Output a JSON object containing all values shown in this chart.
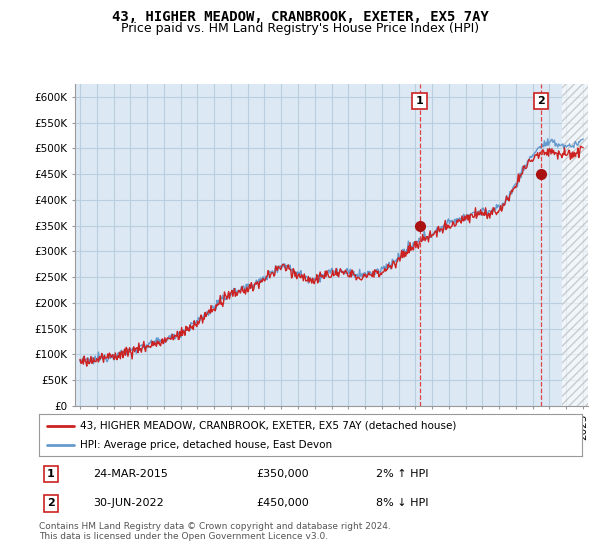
{
  "title": "43, HIGHER MEADOW, CRANBROOK, EXETER, EX5 7AY",
  "subtitle": "Price paid vs. HM Land Registry's House Price Index (HPI)",
  "ylabel_ticks": [
    "£0",
    "£50K",
    "£100K",
    "£150K",
    "£200K",
    "£250K",
    "£300K",
    "£350K",
    "£400K",
    "£450K",
    "£500K",
    "£550K",
    "£600K"
  ],
  "ylim": [
    0,
    620000
  ],
  "xlim_start": 1994.7,
  "xlim_end": 2025.3,
  "background_color": "#ffffff",
  "plot_bg_color": "#dce9f5",
  "grid_color": "#b8cfe0",
  "hpi_color": "#6699cc",
  "price_color": "#cc2222",
  "marker1_x": 2015.25,
  "marker1_y": 350000,
  "marker2_x": 2022.5,
  "marker2_y": 450000,
  "hatch_start": 2023.75,
  "legend_label1": "43, HIGHER MEADOW, CRANBROOK, EXETER, EX5 7AY (detached house)",
  "legend_label2": "HPI: Average price, detached house, East Devon",
  "annot1_date": "24-MAR-2015",
  "annot1_price": "£350,000",
  "annot1_hpi": "2% ↑ HPI",
  "annot2_date": "30-JUN-2022",
  "annot2_price": "£450,000",
  "annot2_hpi": "8% ↓ HPI",
  "footer": "Contains HM Land Registry data © Crown copyright and database right 2024.\nThis data is licensed under the Open Government Licence v3.0.",
  "title_fontsize": 10,
  "subtitle_fontsize": 9,
  "tick_fontsize": 7.5
}
